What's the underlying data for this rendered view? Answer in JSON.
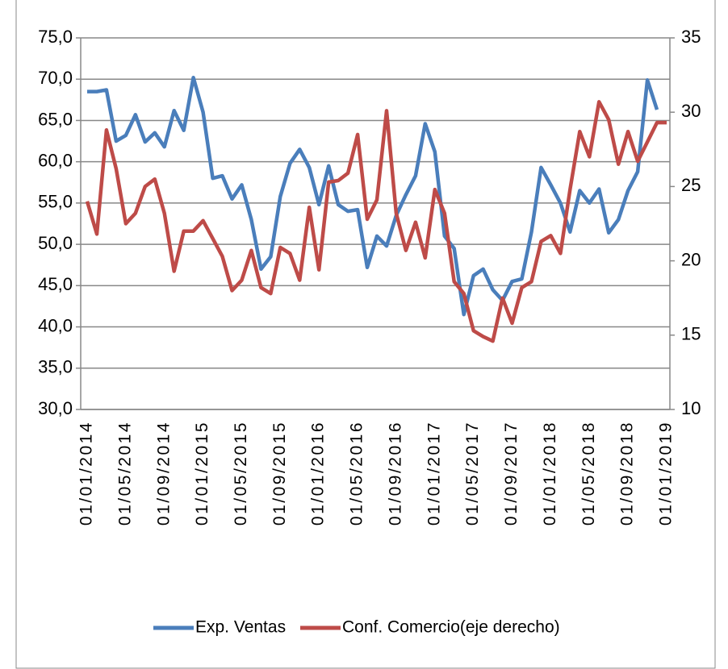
{
  "chart_data": {
    "type": "line",
    "categories": [
      "01/01/2014",
      null,
      null,
      null,
      "01/05/2014",
      null,
      null,
      null,
      "01/09/2014",
      null,
      null,
      null,
      "01/01/2015",
      null,
      null,
      null,
      "01/05/2015",
      null,
      null,
      null,
      "01/09/2015",
      null,
      null,
      null,
      "01/01/2016",
      null,
      null,
      null,
      "01/05/2016",
      null,
      null,
      null,
      "01/09/2016",
      null,
      null,
      null,
      "01/01/2017",
      null,
      null,
      null,
      "01/05/2017",
      null,
      null,
      null,
      "01/09/2017",
      null,
      null,
      null,
      "01/01/2018",
      null,
      null,
      null,
      "01/05/2018",
      null,
      null,
      null,
      "01/09/2018",
      null,
      null,
      null,
      "01/01/2019"
    ],
    "series": [
      {
        "name": "Exp. Ventas",
        "color": "#4a7ebb",
        "values": [
          68.5,
          68.5,
          68.7,
          62.5,
          63.2,
          65.7,
          62.4,
          63.5,
          61.8,
          66.2,
          63.8,
          70.2,
          66.0,
          58.0,
          58.3,
          55.5,
          57.2,
          53.0,
          47.0,
          48.5,
          55.8,
          59.8,
          61.5,
          59.3,
          54.8,
          59.5,
          54.8,
          54.0,
          54.2,
          47.2,
          51.0,
          49.8,
          53.5,
          56.0,
          58.3,
          64.6,
          61.2,
          51.0,
          49.5,
          41.5,
          46.2,
          47.0,
          44.5,
          43.2,
          45.5,
          45.8,
          51.5,
          59.3,
          57.2,
          55.0,
          51.5,
          56.5,
          55.0,
          56.7,
          51.4,
          53.0,
          56.5,
          58.8,
          69.9,
          66.3,
          null
        ]
      },
      {
        "name": "Conf. Comercio(eje derecho)",
        "color": "#be4b48",
        "axis": "y2",
        "values": [
          24.0,
          21.8,
          28.8,
          26.2,
          22.5,
          23.2,
          25.0,
          25.5,
          23.2,
          19.3,
          22.0,
          22.0,
          22.7,
          21.5,
          20.3,
          18.0,
          18.7,
          20.7,
          18.2,
          17.8,
          20.9,
          20.5,
          18.7,
          23.6,
          19.4,
          25.3,
          25.4,
          25.9,
          28.5,
          22.8,
          24.1,
          30.1,
          23.2,
          20.7,
          22.6,
          20.2,
          24.8,
          23.2,
          18.6,
          17.8,
          15.3,
          14.9,
          14.6,
          17.5,
          15.8,
          18.2,
          18.6,
          21.3,
          21.7,
          20.5,
          24.8,
          28.7,
          27.0,
          30.7,
          29.5,
          26.5,
          28.7,
          26.7,
          28.0,
          29.3,
          29.3
        ]
      }
    ],
    "ylim": [
      30,
      75
    ],
    "yticks": [
      {
        "value": 30,
        "label": "30,0"
      },
      {
        "value": 35,
        "label": "35,0"
      },
      {
        "value": 40,
        "label": "40,0"
      },
      {
        "value": 45,
        "label": "45,0"
      },
      {
        "value": 50,
        "label": "50,0"
      },
      {
        "value": 55,
        "label": "55,0"
      },
      {
        "value": 60,
        "label": "60,0"
      },
      {
        "value": 65,
        "label": "65,0"
      },
      {
        "value": 70,
        "label": "70,0"
      },
      {
        "value": 75,
        "label": "75,0"
      }
    ],
    "y2lim": [
      10,
      35
    ],
    "y2ticks": [
      10,
      15,
      20,
      25,
      30,
      35
    ],
    "grid": true,
    "legend": "bottom"
  }
}
